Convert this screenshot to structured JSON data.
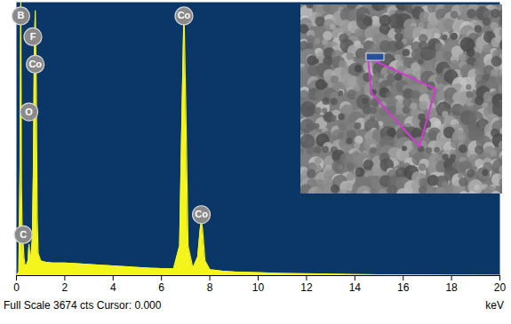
{
  "chart_data": {
    "type": "area",
    "x_label": "keV",
    "footer": "Full Scale 3674 cts Cursor: 0.000",
    "x": [
      0,
      0.1,
      0.15,
      0.18,
      0.21,
      0.25,
      0.28,
      0.31,
      0.35,
      0.4,
      0.48,
      0.52,
      0.56,
      0.6,
      0.66,
      0.7,
      0.74,
      0.78,
      0.82,
      0.86,
      0.9,
      1.0,
      1.2,
      1.5,
      2,
      2.5,
      3,
      3.5,
      4,
      4.5,
      5,
      5.5,
      6,
      6.5,
      6.75,
      6.85,
      6.93,
      7.01,
      7.1,
      7.3,
      7.5,
      7.6,
      7.65,
      7.7,
      7.8,
      8,
      8.5,
      9,
      10,
      11,
      12,
      13,
      14,
      15,
      16,
      17,
      18,
      19,
      20
    ],
    "values": [
      0,
      50,
      1500,
      3674,
      1200,
      300,
      420,
      250,
      150,
      130,
      200,
      420,
      260,
      250,
      500,
      1400,
      3000,
      3560,
      2600,
      800,
      300,
      200,
      180,
      170,
      170,
      160,
      150,
      140,
      130,
      120,
      110,
      100,
      95,
      90,
      400,
      2200,
      3560,
      2200,
      400,
      100,
      250,
      620,
      740,
      620,
      200,
      80,
      60,
      50,
      40,
      30,
      25,
      20,
      15,
      12,
      10,
      8,
      6,
      5,
      4
    ],
    "color": "#f5f51e",
    "xlim": [
      0,
      20
    ],
    "xticks": [
      0,
      2,
      4,
      6,
      8,
      10,
      12,
      14,
      16,
      18,
      20
    ],
    "ylim": [
      0,
      3674
    ],
    "yticks": [],
    "tick_labels": "x",
    "annotations": [
      {
        "text": "B",
        "x": 0.18,
        "y": 3490
      },
      {
        "text": "F",
        "x": 0.68,
        "y": 3210
      },
      {
        "text": "Co",
        "x": 0.78,
        "y": 2840
      },
      {
        "text": "O",
        "x": 0.52,
        "y": 2200
      },
      {
        "text": "C",
        "x": 0.28,
        "y": 550
      },
      {
        "text": "Co",
        "x": 6.93,
        "y": 3490
      },
      {
        "text": "Co",
        "x": 7.65,
        "y": 820
      }
    ]
  }
}
